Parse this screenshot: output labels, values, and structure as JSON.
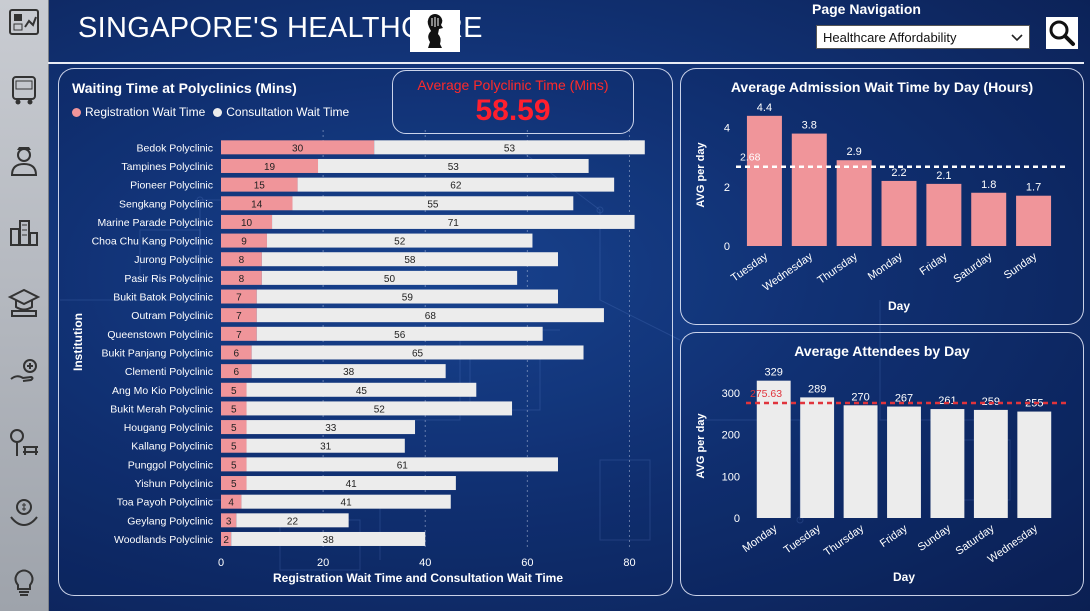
{
  "header": {
    "title": "SINGAPORE'S HEALTHCARE",
    "page_nav_label": "Page Navigation",
    "page_nav_selected": "Healthcare Affordability"
  },
  "nav_icons": [
    "dashboard-icon",
    "bus-icon",
    "officer-icon",
    "city-icon",
    "education-icon",
    "health-icon",
    "park-icon",
    "money-icon",
    "idea-icon"
  ],
  "colors": {
    "registration": "#f0959a",
    "consultation": "#ececec",
    "avg_line": "#ffffff",
    "avg_line_red": "#e0343c",
    "kpi": "#ff1f2e"
  },
  "kpi": {
    "label": "Average Polyclinic Time (Mins)",
    "value": "58.59"
  },
  "polyclinic_chart": {
    "title": "Waiting Time at Polyclinics (Mins)",
    "legend": [
      "Registration Wait Time",
      "Consultation Wait Time"
    ]
  },
  "admission_chart": {
    "title": "Average Admission Wait Time by Day (Hours)"
  },
  "attendees_chart": {
    "title": "Average Attendees by Day"
  },
  "chart_data": [
    {
      "type": "bar",
      "orientation": "horizontal-stacked",
      "title": "Waiting Time at Polyclinics (Mins)",
      "xlabel": "Registration Wait Time and Consultation Wait Time",
      "ylabel": "Institution",
      "xlim": [
        0,
        85
      ],
      "x_ticks": [
        0,
        20,
        40,
        60,
        80
      ],
      "categories": [
        "Bedok Polyclinic",
        "Tampines Polyclinic",
        "Pioneer Polyclinic",
        "Sengkang Polyclinic",
        "Marine Parade Polyclinic",
        "Choa Chu Kang Polyclinic",
        "Jurong Polyclinic",
        "Pasir Ris Polyclinic",
        "Bukit Batok Polyclinic",
        "Outram Polyclinic",
        "Queenstown Polyclinic",
        "Bukit Panjang Polyclinic",
        "Clementi Polyclinic",
        "Ang Mo Kio Polyclinic",
        "Bukit Merah Polyclinic",
        "Hougang Polyclinic",
        "Kallang Polyclinic",
        "Punggol Polyclinic",
        "Yishun Polyclinic",
        "Toa Payoh Polyclinic",
        "Geylang Polyclinic",
        "Woodlands Polyclinic"
      ],
      "series": [
        {
          "name": "Registration Wait Time",
          "values": [
            30,
            19,
            15,
            14,
            10,
            9,
            8,
            8,
            7,
            7,
            7,
            6,
            6,
            5,
            5,
            5,
            5,
            5,
            5,
            4,
            3,
            2
          ]
        },
        {
          "name": "Consultation Wait Time",
          "values": [
            53,
            53,
            62,
            55,
            71,
            52,
            58,
            50,
            59,
            68,
            56,
            65,
            38,
            45,
            52,
            33,
            31,
            61,
            41,
            41,
            22,
            38
          ]
        }
      ],
      "legend": "top-left",
      "grid": "vertical dotted"
    },
    {
      "type": "bar",
      "title": "Average Admission Wait Time by Day (Hours)",
      "xlabel": "Day",
      "ylabel": "AVG per day",
      "ylim": [
        0,
        4.8
      ],
      "y_ticks": [
        0,
        2,
        4
      ],
      "categories": [
        "Tuesday",
        "Wednesday",
        "Thursday",
        "Monday",
        "Friday",
        "Saturday",
        "Sunday"
      ],
      "values": [
        4.4,
        3.8,
        2.9,
        2.2,
        2.1,
        1.8,
        1.7
      ],
      "value_labels": [
        "4.4",
        "3.8",
        "2.9",
        "2.2",
        "2.1",
        "1.8",
        "1.7"
      ],
      "average": 2.68,
      "average_label": "2.68"
    },
    {
      "type": "bar",
      "title": "Average Attendees by Day",
      "xlabel": "Day",
      "ylabel": "AVG per day",
      "ylim": [
        0,
        345
      ],
      "y_ticks": [
        0,
        100,
        200,
        300
      ],
      "categories": [
        "Monday",
        "Tuesday",
        "Thursday",
        "Friday",
        "Sunday",
        "Saturday",
        "Wednesday"
      ],
      "values": [
        329,
        289,
        270,
        267,
        261,
        259,
        255
      ],
      "value_labels": [
        "329",
        "289",
        "270",
        "267",
        "261",
        "259",
        "255"
      ],
      "average": 275.63,
      "average_label": "275.63"
    }
  ]
}
